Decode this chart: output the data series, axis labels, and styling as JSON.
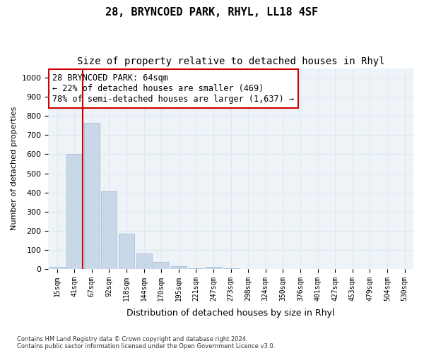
{
  "title": "28, BRYNCOED PARK, RHYL, LL18 4SF",
  "subtitle": "Size of property relative to detached houses in Rhyl",
  "xlabel": "Distribution of detached houses by size in Rhyl",
  "ylabel": "Number of detached properties",
  "footnote": "Contains HM Land Registry data © Crown copyright and database right 2024.\nContains public sector information licensed under the Open Government Licence v3.0.",
  "bin_labels": [
    "15sqm",
    "41sqm",
    "67sqm",
    "92sqm",
    "118sqm",
    "144sqm",
    "170sqm",
    "195sqm",
    "221sqm",
    "247sqm",
    "273sqm",
    "298sqm",
    "324sqm",
    "350sqm",
    "376sqm",
    "401sqm",
    "427sqm",
    "453sqm",
    "479sqm",
    "504sqm",
    "530sqm"
  ],
  "bar_values": [
    10,
    600,
    765,
    405,
    185,
    80,
    35,
    15,
    5,
    10,
    5,
    0,
    0,
    0,
    0,
    0,
    0,
    0,
    0,
    0,
    0
  ],
  "bar_color": "#c8d8e8",
  "bar_edgecolor": "#a0b8cc",
  "property_bin_index": 1,
  "vline_color": "#cc0000",
  "ylim": [
    0,
    1050
  ],
  "yticks": [
    0,
    100,
    200,
    300,
    400,
    500,
    600,
    700,
    800,
    900,
    1000
  ],
  "annotation_text": "28 BRYNCOED PARK: 64sqm\n← 22% of detached houses are smaller (469)\n78% of semi-detached houses are larger (1,637) →",
  "annotation_fontsize": 8.5,
  "grid_color": "#dde8f0",
  "background_color": "#eef3f8",
  "title_fontsize": 11,
  "subtitle_fontsize": 10
}
